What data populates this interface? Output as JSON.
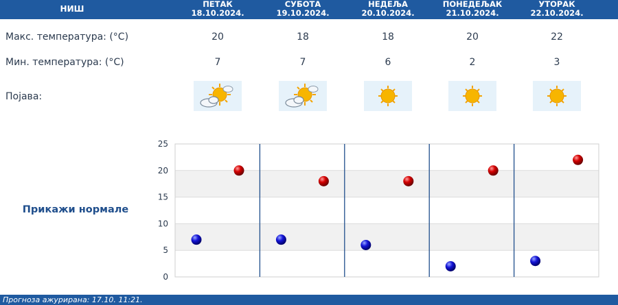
{
  "header": {
    "city": "НИШ",
    "days": [
      {
        "name": "ПЕТАК",
        "date": "18.10.2024."
      },
      {
        "name": "СУБОТА",
        "date": "19.10.2024."
      },
      {
        "name": "НЕДЕЉА",
        "date": "20.10.2024."
      },
      {
        "name": "ПОНЕДЕЉАК",
        "date": "21.10.2024."
      },
      {
        "name": "УТОРАК",
        "date": "22.10.2024."
      }
    ]
  },
  "rows": {
    "max_label": "Макс. температура: (°C)",
    "min_label": "Мин. температура: (°C)",
    "weather_label": "Појава:"
  },
  "max_temps": [
    "20",
    "18",
    "18",
    "20",
    "22"
  ],
  "min_temps": [
    "7",
    "7",
    "6",
    "2",
    "3"
  ],
  "weather_icons": [
    "partly-cloudy-icon",
    "partly-cloudy-icon",
    "sunny-icon",
    "sunny-icon",
    "sunny-icon"
  ],
  "normals_button": "Прикажи нормале",
  "footer": {
    "updated": "Прогноза ажурирана:  17.10.  11:21."
  },
  "colors": {
    "header_bg": "#1f5aa0",
    "max_marker": "#c00000",
    "min_marker": "#1a1ad0"
  },
  "chart_data": {
    "type": "scatter",
    "title": "",
    "xlabel": "",
    "ylabel": "",
    "ylim": [
      0,
      25
    ],
    "yticks": [
      "0",
      "5",
      "10",
      "15",
      "20",
      "25"
    ],
    "categories": [
      "18.10.2024.",
      "19.10.2024.",
      "20.10.2024.",
      "21.10.2024.",
      "22.10.2024."
    ],
    "series": [
      {
        "values": [
          20,
          18,
          18,
          20,
          22
        ],
        "color": "#c00000"
      },
      {
        "values": [
          7,
          7,
          6,
          2,
          3
        ],
        "color": "#1a1ad0"
      }
    ],
    "grid": true
  }
}
